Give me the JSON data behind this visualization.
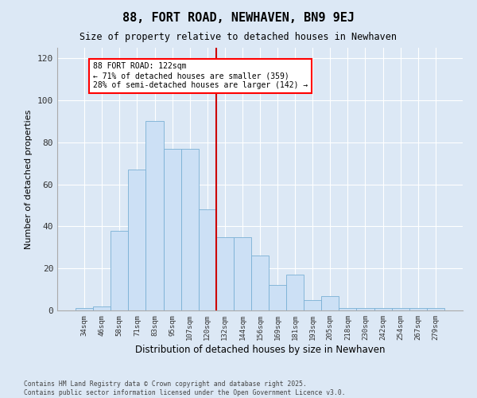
{
  "title": "88, FORT ROAD, NEWHAVEN, BN9 9EJ",
  "subtitle": "Size of property relative to detached houses in Newhaven",
  "xlabel": "Distribution of detached houses by size in Newhaven",
  "ylabel": "Number of detached properties",
  "bar_color": "#cce0f5",
  "bar_edge_color": "#7ab0d4",
  "categories": [
    "34sqm",
    "46sqm",
    "58sqm",
    "71sqm",
    "83sqm",
    "95sqm",
    "107sqm",
    "120sqm",
    "132sqm",
    "144sqm",
    "156sqm",
    "169sqm",
    "181sqm",
    "193sqm",
    "205sqm",
    "218sqm",
    "230sqm",
    "242sqm",
    "254sqm",
    "267sqm",
    "279sqm"
  ],
  "values": [
    1,
    2,
    38,
    67,
    90,
    77,
    77,
    48,
    35,
    35,
    26,
    12,
    17,
    5,
    7,
    1,
    1,
    1,
    1,
    1,
    1
  ],
  "vline_index": 7.5,
  "vline_color": "#cc0000",
  "annotation_text": "88 FORT ROAD: 122sqm\n← 71% of detached houses are smaller (359)\n28% of semi-detached houses are larger (142) →",
  "ylim": [
    0,
    125
  ],
  "yticks": [
    0,
    20,
    40,
    60,
    80,
    100,
    120
  ],
  "background_color": "#dce8f5",
  "grid_color": "#ffffff",
  "footer": "Contains HM Land Registry data © Crown copyright and database right 2025.\nContains public sector information licensed under the Open Government Licence v3.0."
}
